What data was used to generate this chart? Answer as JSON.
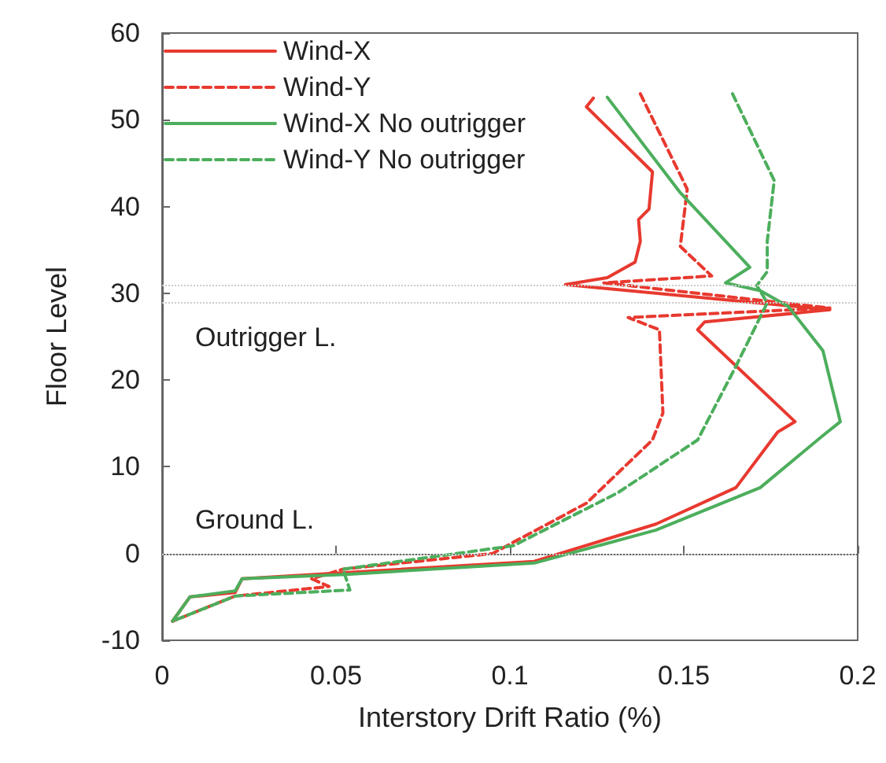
{
  "chart_data": {
    "type": "line",
    "xlabel": "Interstory Drift Ratio (%)",
    "ylabel": "Floor Level",
    "xlim": [
      0,
      0.2
    ],
    "xticks": [
      0,
      0.05,
      0.1,
      0.15,
      0.2
    ],
    "ylim": [
      -10,
      60
    ],
    "yticks": [
      -10,
      0,
      10,
      20,
      30,
      40,
      50,
      60
    ],
    "grid": false,
    "legend": "top left",
    "marker": "none",
    "ref_lines": [
      {
        "axis": "y",
        "value": 0,
        "color": "#cccccc",
        "line_style": "dotted"
      },
      {
        "axis": "y",
        "value": 29,
        "color": "#cccccc",
        "line_style": "dotted"
      },
      {
        "axis": "y",
        "value": 31,
        "color": "#cccccc",
        "line_style": "dotted"
      }
    ],
    "annotations": [
      "Outrigger L.",
      "Ground L."
    ],
    "series": [
      {
        "name": "Wind-X",
        "color": "#e8392f",
        "line_style": "solid",
        "x": [
          0.124,
          0.122,
          0.141,
          0.14,
          0.137,
          0.1375,
          0.136,
          0.128,
          0.116,
          0.192,
          0.156,
          0.154,
          0.182,
          0.177,
          0.165,
          0.142,
          0.107,
          0.023,
          0.021,
          0.008,
          0.003
        ],
        "values": [
          52.5,
          51.5,
          44,
          39.7,
          38.5,
          36,
          33.6,
          31.8,
          31,
          28.1,
          26.7,
          25.8,
          15.2,
          14,
          7.6,
          3.4,
          -0.9,
          -2.9,
          -4.5,
          -5,
          -7.8
        ]
      },
      {
        "name": "Wind-Y",
        "color": "#e8392f",
        "line_style": "dashed",
        "x": [
          0.1375,
          0.151,
          0.149,
          0.158,
          0.127,
          0.192,
          0.134,
          0.143,
          0.144,
          0.141,
          0.122,
          0.101,
          0.095,
          0.052,
          0.043,
          0.048,
          0.021,
          0.003
        ],
        "values": [
          53,
          42,
          35.4,
          32,
          31.2,
          28.3,
          27.2,
          25.8,
          16.2,
          13.1,
          5.8,
          1.3,
          0,
          -1.8,
          -2.9,
          -3.8,
          -4.9,
          -7.8
        ]
      },
      {
        "name": "Wind-X No outrigger",
        "color": "#4cae5c",
        "line_style": "solid",
        "x": [
          0.128,
          0.149,
          0.169,
          0.162,
          0.172,
          0.18,
          0.19,
          0.195,
          0.19,
          0.172,
          0.142,
          0.107,
          0.053,
          0.023,
          0.021,
          0.008,
          0.003
        ],
        "values": [
          52.6,
          41.6,
          33,
          31.2,
          30.3,
          28.5,
          23.4,
          15.2,
          13.6,
          7.6,
          2.7,
          -1.1,
          -2.4,
          -2.9,
          -4.3,
          -5,
          -7.8
        ]
      },
      {
        "name": "Wind-Y No outrigger",
        "color": "#4cae5c",
        "line_style": "dashed",
        "x": [
          0.164,
          0.176,
          0.174,
          0.174,
          0.171,
          0.174,
          0.165,
          0.154,
          0.131,
          0.101,
          0.052,
          0.054,
          0.021,
          0.003
        ],
        "values": [
          53,
          43,
          36,
          32.5,
          30.9,
          28.9,
          21.6,
          13.1,
          7,
          0.9,
          -1.8,
          -4.2,
          -4.9,
          -7.8
        ]
      }
    ]
  }
}
